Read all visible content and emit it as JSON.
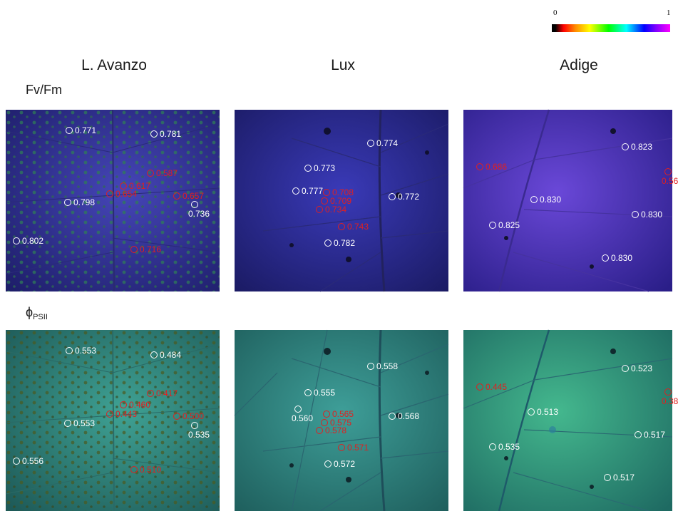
{
  "colorbar": {
    "min_label": "0",
    "max_label": "1"
  },
  "columns": [
    "L. Avanzo",
    "Lux",
    "Adige"
  ],
  "rows": {
    "fvfm": {
      "label": "Fv/Fm"
    },
    "phi": {
      "symbol": "ϕ",
      "subscript": "PSII"
    }
  },
  "colors": {
    "fvfm_bg": "#3a3a9c",
    "phi_bg": "#3a8a86",
    "adige_fvfm_bg": "#5a3ec0",
    "adige_phi_bg": "#3aa686",
    "label_white": "#ffffff",
    "label_red": "#e02020"
  },
  "panels": {
    "fvfm": [
      {
        "labels": [
          "0.771",
          "0.781",
          "0.587",
          "0.617",
          "0.654",
          "0.657",
          "0.798",
          "0.736",
          "0.802",
          "0.716"
        ]
      },
      {
        "labels": [
          "0.774",
          "0.773",
          "0.777",
          "0.708",
          "0.709",
          "0.734",
          "0.772",
          "0.743",
          "0.782"
        ]
      },
      {
        "labels": [
          "0.686",
          "0.823",
          "0.56",
          "0.830",
          "0.830",
          "0.825",
          "0.830"
        ]
      }
    ],
    "phi": [
      {
        "labels": [
          "0.553",
          "0.484",
          "0.417",
          "0.460",
          "0.443",
          "0.500",
          "0.553",
          "0.535",
          "0.556",
          "0.510"
        ]
      },
      {
        "labels": [
          "0.558",
          "0.555",
          "0.560",
          "0.565",
          "0.575",
          "0.578",
          "0.568",
          "0.571",
          "0.572"
        ]
      },
      {
        "labels": [
          "0.445",
          "0.523",
          "0.38",
          "0.513",
          "0.517",
          "0.535",
          "0.517"
        ]
      }
    ]
  }
}
